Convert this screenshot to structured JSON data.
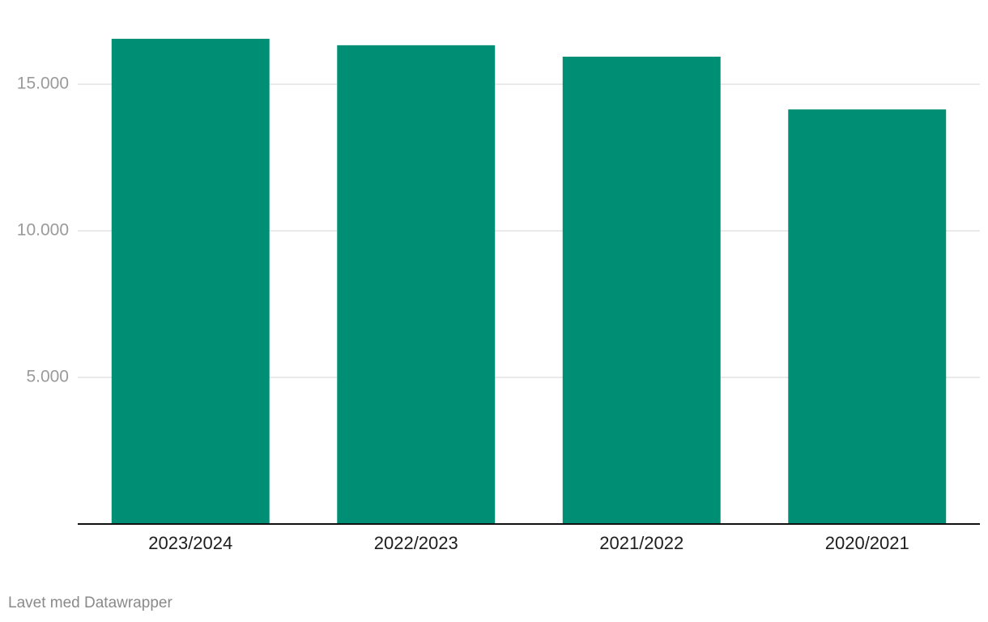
{
  "chart_data": {
    "type": "bar",
    "categories": [
      "2023/2024",
      "2022/2023",
      "2021/2022",
      "2020/2021"
    ],
    "values": [
      16550,
      16330,
      15940,
      14140
    ],
    "color": "#008f74",
    "ylim": [
      0,
      17000
    ],
    "yticks": [
      {
        "value": 5000,
        "label": "5.000"
      },
      {
        "value": 10000,
        "label": "10.000"
      },
      {
        "value": 15000,
        "label": "15.000"
      }
    ],
    "grid": true,
    "credit": "Lavet med Datawrapper"
  }
}
